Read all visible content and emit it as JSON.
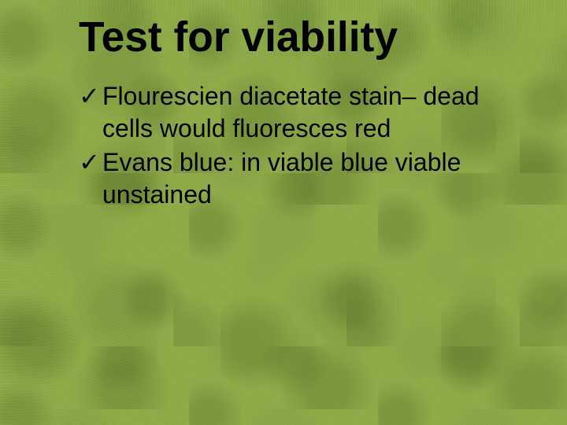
{
  "slide": {
    "background_color": "#8fa84f",
    "texture_dark": "#5a7330",
    "texture_light": "#a6c06a",
    "title": {
      "text": "Test for viability",
      "color": "#000000",
      "fontsize_pt": 40,
      "font_weight": "bold"
    },
    "bullets": {
      "marker": "✓",
      "color": "#000000",
      "fontsize_pt": 24,
      "items": [
        "Flourescien diacetate stain– dead cells would fluoresces red",
        "Evans blue: in viable blue viable unstained"
      ]
    }
  }
}
